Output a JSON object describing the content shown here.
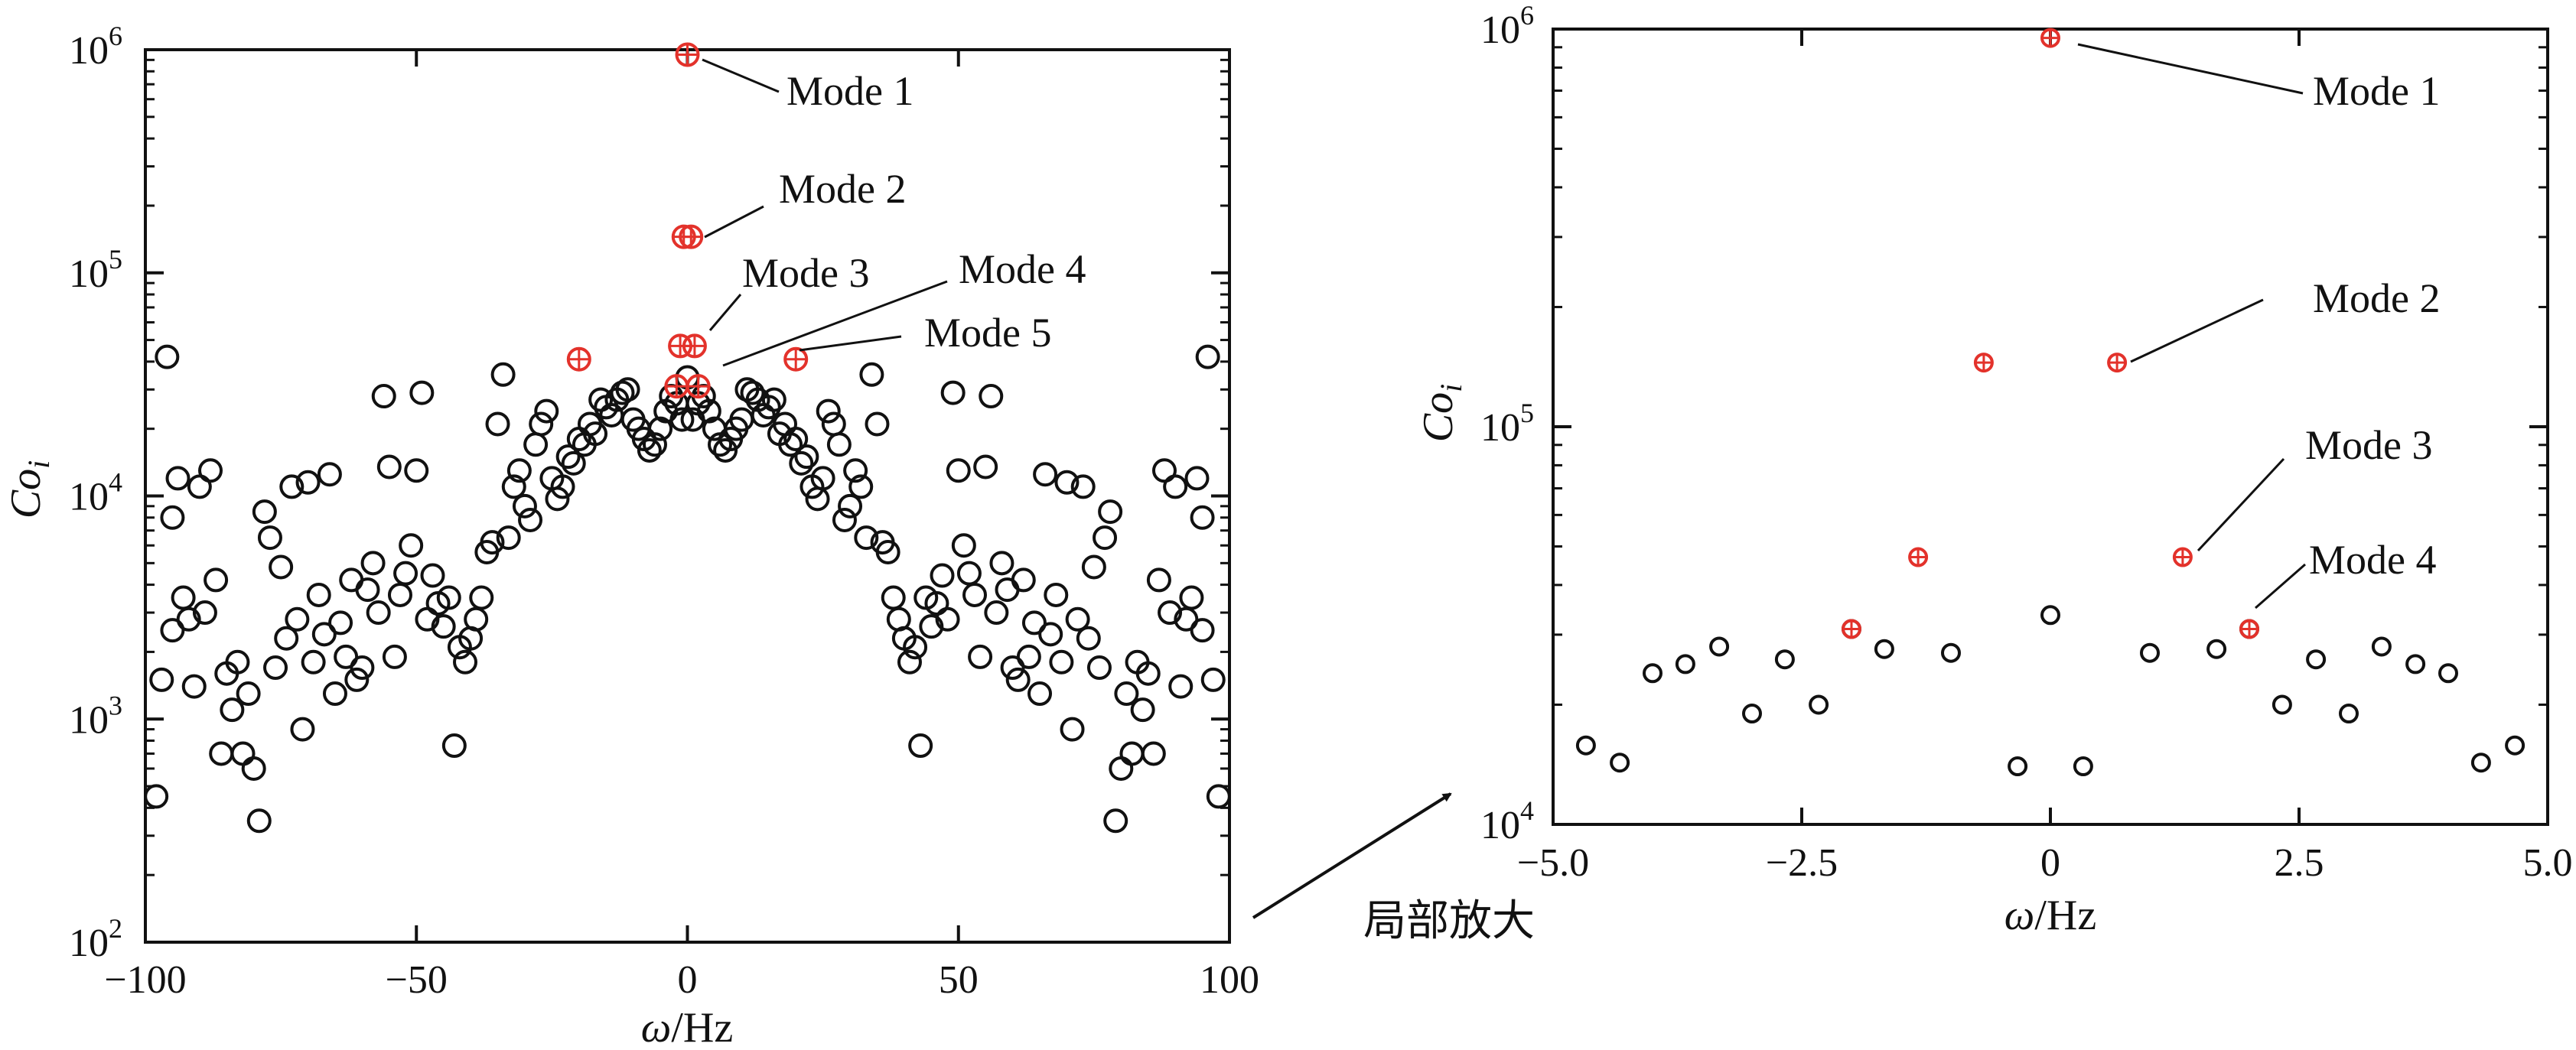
{
  "chart_data": [
    {
      "type": "scatter",
      "xlabel_var": "ω",
      "xlabel_unit": "/Hz",
      "ylabel_main": "Co",
      "ylabel_sub": "i",
      "xlim": [
        -100,
        100
      ],
      "ylim": [
        100,
        1000000
      ],
      "yscale": "log",
      "x_ticks": [
        "−100",
        "−50",
        "0",
        "50",
        "100"
      ],
      "y_ticks": [
        {
          "base": "10",
          "exp": "2"
        },
        {
          "base": "10",
          "exp": "3"
        },
        {
          "base": "10",
          "exp": "4"
        },
        {
          "base": "10",
          "exp": "5"
        },
        {
          "base": "10",
          "exp": "6"
        }
      ],
      "annotations": [
        "Mode 1",
        "Mode 2",
        "Mode 3",
        "Mode 4",
        "Mode 5"
      ],
      "modes_x": [
        0,
        -0.67,
        0.67,
        -1.33,
        1.33,
        -2,
        2,
        -20,
        20
      ],
      "modes_y": [
        950000,
        145000,
        145000,
        47000,
        47000,
        31000,
        31000,
        41000,
        41000
      ],
      "background": {
        "x": [
          -98,
          -97,
          -96,
          -95,
          -95,
          -94,
          -93,
          -92,
          -91,
          -90,
          -89,
          -88,
          -87,
          -86,
          -85,
          -84,
          -83,
          -82,
          -81,
          -80,
          -79,
          -78,
          -77,
          -76,
          -75,
          -74,
          -73,
          -72,
          -71,
          -70,
          -69,
          -68,
          -67,
          -66,
          -65,
          -64,
          -63,
          -62,
          -61,
          -60,
          -59,
          -58,
          -57,
          -56,
          -55,
          -54,
          -53,
          -52,
          -51,
          -50,
          -49,
          -48,
          -47,
          -46,
          -45,
          -44,
          -43,
          -42,
          -41,
          -40,
          -39,
          -38,
          -37,
          -36,
          -35,
          -34,
          -33,
          -32,
          -31,
          -30,
          -29,
          -28,
          -27,
          -26,
          -25,
          -24,
          -23,
          -22,
          -21,
          -20,
          -19,
          -18,
          -17,
          -16,
          -15,
          -14,
          -13,
          -12,
          -11,
          -10,
          -9,
          -8,
          -7,
          -6,
          -5,
          -4,
          -3,
          -2,
          -1,
          0,
          1,
          2,
          3,
          4,
          5,
          6,
          7,
          8,
          9,
          10,
          11,
          12,
          13,
          14,
          15,
          16,
          17,
          18,
          19,
          20,
          21,
          22,
          23,
          24,
          25,
          26,
          27,
          28,
          29,
          30,
          31,
          32,
          33,
          34,
          35,
          36,
          37,
          38,
          39,
          40,
          41,
          42,
          43,
          44,
          45,
          46,
          47,
          48,
          49,
          50,
          51,
          52,
          53,
          54,
          55,
          56,
          57,
          58,
          59,
          60,
          61,
          62,
          63,
          64,
          65,
          66,
          67,
          68,
          69,
          70,
          71,
          72,
          73,
          74,
          75,
          76,
          77,
          78,
          79,
          80,
          81,
          82,
          83,
          84,
          85,
          86,
          87,
          88,
          89,
          90,
          91,
          92,
          93,
          94,
          95,
          95,
          96,
          97,
          98
        ],
        "y": [
          450,
          1500,
          42000,
          8000,
          2500,
          12000,
          3500,
          2800,
          1400,
          11000,
          3000,
          13000,
          4200,
          700,
          1600,
          1100,
          1800,
          700,
          1300,
          600,
          350,
          8500,
          6500,
          1700,
          4800,
          2300,
          11000,
          2800,
          900,
          11500,
          1800,
          3600,
          2400,
          12500,
          1300,
          2700,
          1900,
          4200,
          1500,
          1700,
          3800,
          5000,
          3000,
          28000,
          13500,
          1900,
          3600,
          4500,
          6000,
          13000,
          29000,
          2800,
          4400,
          3300,
          2600,
          3500,
          760,
          2100,
          1800,
          2300,
          2800,
          3500,
          5600,
          6200,
          21000,
          35000,
          6500,
          11000,
          13000,
          9000,
          7800,
          17000,
          21000,
          24000,
          12000,
          9700,
          11000,
          15000,
          14000,
          18000,
          17000,
          21000,
          19000,
          27000,
          25000,
          23000,
          27000,
          29000,
          30000,
          22000,
          20000,
          18000,
          16000,
          17000,
          20000,
          24000,
          28000,
          26000,
          22000,
          34000,
          22000,
          26000,
          28000,
          24000,
          20000,
          17000,
          16000,
          18000,
          20000,
          22000,
          30000,
          29000,
          27000,
          23000,
          25000,
          27000,
          19000,
          21000,
          17000,
          18000,
          14000,
          15000,
          11000,
          9700,
          12000,
          24000,
          21000,
          17000,
          7800,
          9000,
          13000,
          11000,
          6500,
          35000,
          21000,
          6200,
          5600,
          3500,
          2800,
          2300,
          1800,
          2100,
          760,
          3500,
          2600,
          3300,
          4400,
          2800,
          29000,
          13000,
          6000,
          4500,
          3600,
          1900,
          13500,
          28000,
          3000,
          5000,
          3800,
          1700,
          1500,
          4200,
          1900,
          2700,
          1300,
          12500,
          2400,
          3600,
          1800,
          11500,
          900,
          2800,
          11000,
          2300,
          4800,
          1700,
          6500,
          8500,
          350,
          600,
          1300,
          700,
          1800,
          1100,
          1600,
          700,
          4200,
          13000,
          3000,
          11000,
          1400,
          2800,
          3500,
          12000,
          2500,
          8000,
          42000,
          1500,
          450
        ]
      }
    },
    {
      "type": "scatter",
      "xlabel_var": "ω",
      "xlabel_unit": "/Hz",
      "ylabel_main": "Co",
      "ylabel_sub": "i",
      "xlim": [
        -5,
        5
      ],
      "ylim": [
        10000,
        1000000
      ],
      "yscale": "log",
      "x_ticks": [
        "−5.0",
        "−2.5",
        "0",
        "2.5",
        "5.0"
      ],
      "y_ticks": [
        {
          "base": "10",
          "exp": "4"
        },
        {
          "base": "10",
          "exp": "5"
        },
        {
          "base": "10",
          "exp": "6"
        }
      ],
      "annotations": [
        "Mode 1",
        "Mode 2",
        "Mode 3",
        "Mode 4"
      ],
      "modes_x": [
        0,
        -0.67,
        0.67,
        -1.33,
        1.33,
        -2,
        2
      ],
      "modes_y": [
        950000,
        145000,
        145000,
        47000,
        47000,
        31000,
        31000
      ],
      "background": {
        "x": [
          -4.67,
          -4.33,
          -4.0,
          -3.67,
          -3.33,
          -3.0,
          -2.67,
          -2.33,
          -2.0,
          -1.67,
          -1.0,
          -0.33,
          0,
          0.33,
          1.0,
          1.67,
          2.0,
          2.33,
          2.67,
          3.0,
          3.33,
          3.67,
          4.0,
          4.33,
          4.67
        ],
        "y": [
          15800,
          14300,
          24000,
          25300,
          28000,
          19000,
          26000,
          20000,
          31000,
          27600,
          27000,
          14000,
          33600,
          14000,
          27000,
          27600,
          31000,
          20000,
          26000,
          19000,
          28000,
          25300,
          24000,
          14300,
          15800
        ]
      }
    }
  ],
  "zoom_label": "局部放大"
}
